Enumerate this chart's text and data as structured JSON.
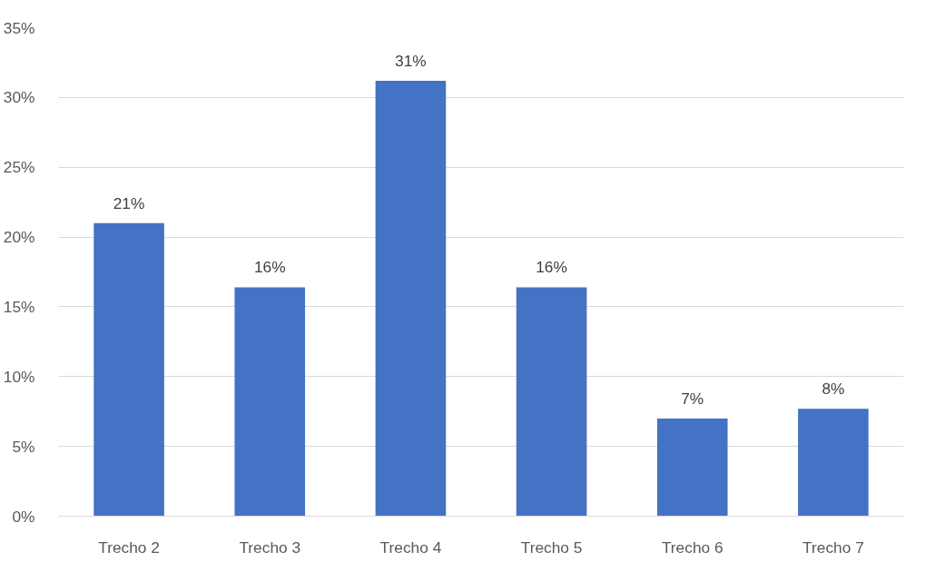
{
  "chart_data": {
    "type": "bar",
    "categories": [
      "Trecho 2",
      "Trecho 3",
      "Trecho 4",
      "Trecho 5",
      "Trecho 6",
      "Trecho 7"
    ],
    "values": [
      21.0,
      16.4,
      31.2,
      16.4,
      7.0,
      7.7
    ],
    "value_labels": [
      "21%",
      "16%",
      "31%",
      "16%",
      "7%",
      "8%"
    ],
    "color": "#4472c4",
    "ylim": [
      0,
      35
    ],
    "yticks": [
      {
        "value": 0,
        "label": "0%"
      },
      {
        "value": 5,
        "label": "5%"
      },
      {
        "value": 10,
        "label": "10%"
      },
      {
        "value": 15,
        "label": "15%"
      },
      {
        "value": 20,
        "label": "20%"
      },
      {
        "value": 25,
        "label": "25%"
      },
      {
        "value": 30,
        "label": "30%"
      },
      {
        "value": 35,
        "label": "35%"
      }
    ],
    "grid": "y"
  }
}
